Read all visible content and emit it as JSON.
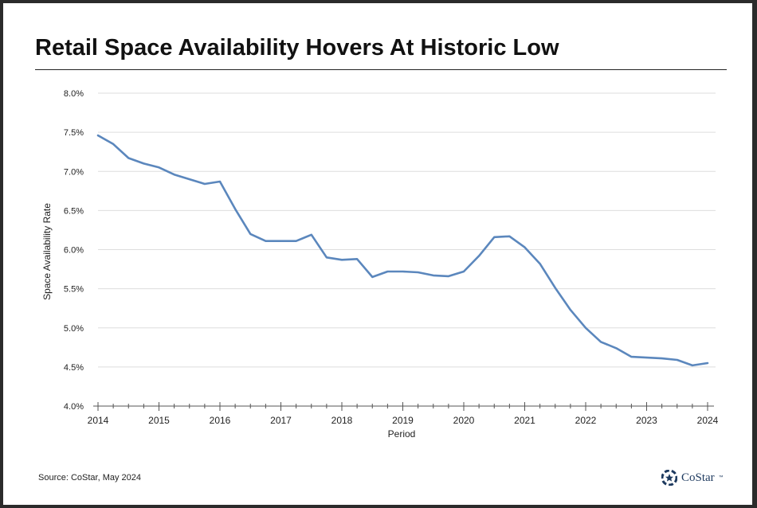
{
  "header": {
    "title": "Retail Space Availability Hovers At Historic Low"
  },
  "footer": {
    "source": "Source: CoStar, May 2024",
    "logo_text": "CoStar",
    "logo_tm": "™"
  },
  "colors": {
    "line": "#5b87bd",
    "grid": "#dddddd",
    "axis": "#555555",
    "text": "#222222",
    "brand": "#1e3a5f"
  },
  "chart_data": {
    "type": "line",
    "title": "Retail Space Availability Hovers At Historic Low",
    "xlabel": "Period",
    "ylabel": "Space Availability Rate",
    "xlim": [
      2014,
      2024
    ],
    "ylim": [
      4.0,
      8.0
    ],
    "x_ticks": [
      2014,
      2015,
      2016,
      2017,
      2018,
      2019,
      2020,
      2021,
      2022,
      2023,
      2024
    ],
    "x_tick_labels": [
      "2014",
      "2015",
      "2016",
      "2017",
      "2018",
      "2019",
      "2020",
      "2021",
      "2022",
      "2023",
      "2024"
    ],
    "y_ticks": [
      4.0,
      4.5,
      5.0,
      5.5,
      6.0,
      6.5,
      7.0,
      7.5,
      8.0
    ],
    "y_tick_labels": [
      "4.0%",
      "4.5%",
      "5.0%",
      "5.5%",
      "6.0%",
      "6.5%",
      "7.0%",
      "7.5%",
      "8.0%"
    ],
    "grid": true,
    "legend": "none",
    "series": [
      {
        "x": [
          2014.0,
          2014.25,
          2014.5,
          2014.75,
          2015.0,
          2015.25,
          2015.5,
          2015.75,
          2016.0,
          2016.25,
          2016.5,
          2016.75,
          2017.0,
          2017.25,
          2017.5,
          2017.75,
          2018.0,
          2018.25,
          2018.5,
          2018.75,
          2019.0,
          2019.25,
          2019.5,
          2019.75,
          2020.0,
          2020.25,
          2020.5,
          2020.75,
          2021.0,
          2021.25,
          2021.5,
          2021.75,
          2022.0,
          2022.25,
          2022.5,
          2022.75,
          2023.0,
          2023.25,
          2023.5,
          2023.75,
          2024.0
        ],
        "values": [
          7.46,
          7.35,
          7.17,
          7.1,
          7.05,
          6.96,
          6.9,
          6.84,
          6.87,
          6.52,
          6.2,
          6.11,
          6.11,
          6.11,
          6.19,
          5.9,
          5.87,
          5.88,
          5.65,
          5.72,
          5.72,
          5.71,
          5.67,
          5.66,
          5.72,
          5.92,
          6.16,
          6.17,
          6.03,
          5.82,
          5.51,
          5.23,
          5.0,
          4.82,
          4.74,
          4.63,
          4.62,
          4.61,
          4.59,
          4.52,
          4.55
        ]
      }
    ]
  }
}
